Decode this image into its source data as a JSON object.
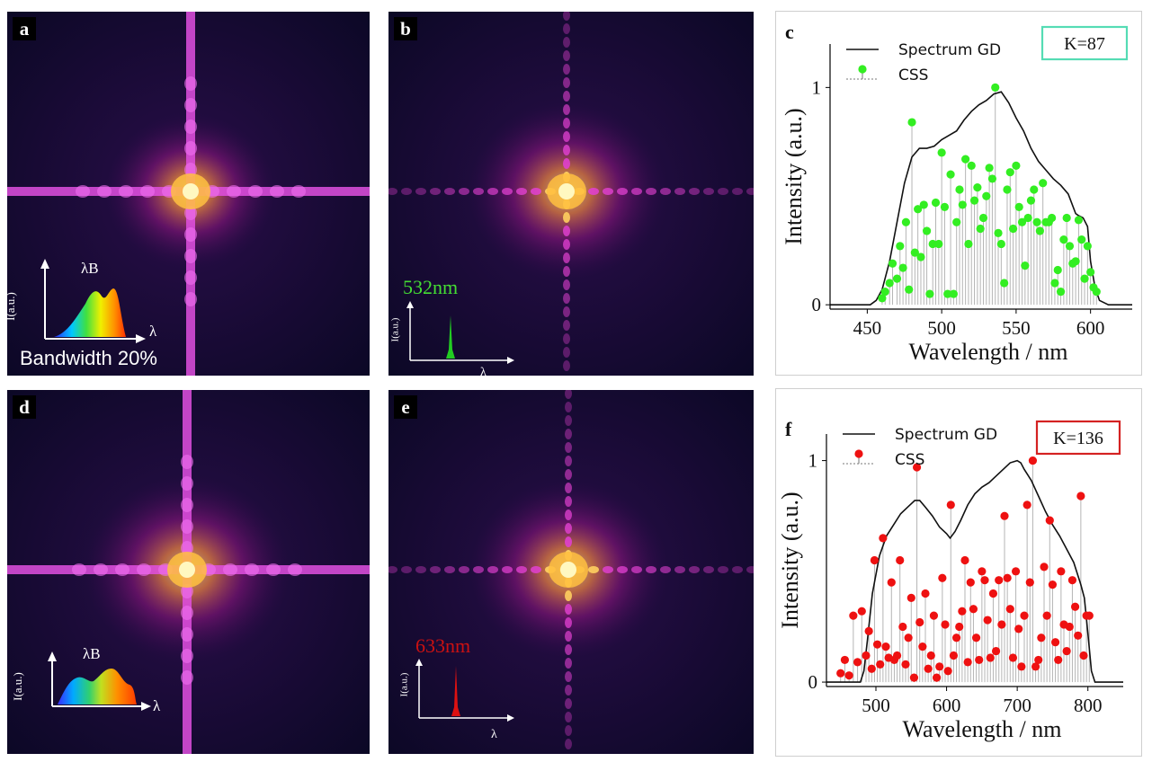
{
  "panels": {
    "a": {
      "label": "a",
      "inset_peak_label": "λB",
      "inset_y_label": "I(a.u.)",
      "inset_x_label": "λ",
      "caption": "Bandwidth 20%"
    },
    "b": {
      "label": "b",
      "wavelength_label": "532nm",
      "inset_y_label": "I(a.u.)",
      "inset_x_label": "λ",
      "line_color": "#22cc22"
    },
    "d": {
      "label": "d",
      "inset_peak_label": "λB",
      "inset_y_label": "I(a.u.)",
      "inset_x_label": "λ"
    },
    "e": {
      "label": "e",
      "wavelength_label": "633nm",
      "inset_y_label": "I(a.u.)",
      "inset_x_label": "λ",
      "line_color": "#dd1111"
    }
  },
  "chart_data": [
    {
      "panel": "c",
      "type": "line",
      "xlabel": "Wavelength / nm",
      "ylabel": "Intensity (a.u.)",
      "xlim": [
        425,
        628
      ],
      "ylim": [
        -0.02,
        1.2
      ],
      "xticks": [
        450,
        500,
        550,
        600
      ],
      "yticks": [
        0,
        1
      ],
      "legend": {
        "placement": "top-left",
        "entries": [
          "Spectrum GD",
          "CSS"
        ]
      },
      "annotation": {
        "text": "K=87",
        "border_color": "#55dcb4"
      },
      "css_color": "#33ee22",
      "series": [
        {
          "name": "Spectrum GD",
          "color": "#111111",
          "x": [
            425,
            452,
            456,
            460,
            465,
            470,
            475,
            480,
            485,
            490,
            495,
            500,
            505,
            510,
            515,
            520,
            525,
            530,
            535,
            540,
            545,
            550,
            555,
            560,
            565,
            570,
            575,
            580,
            585,
            590,
            592,
            595,
            598,
            600,
            603,
            606,
            612,
            628
          ],
          "y": [
            0,
            0,
            0.02,
            0.07,
            0.2,
            0.38,
            0.56,
            0.68,
            0.72,
            0.72,
            0.73,
            0.76,
            0.78,
            0.8,
            0.85,
            0.89,
            0.92,
            0.94,
            0.97,
            0.98,
            0.93,
            0.86,
            0.8,
            0.72,
            0.66,
            0.62,
            0.58,
            0.55,
            0.51,
            0.42,
            0.41,
            0.4,
            0.36,
            0.2,
            0.08,
            0.02,
            0,
            0
          ]
        },
        {
          "name": "CSS",
          "type": "stem",
          "color": "#33ee22",
          "x": [
            460,
            462,
            465,
            467,
            470,
            472,
            474,
            476,
            478,
            480,
            482,
            484,
            486,
            488,
            490,
            492,
            494,
            496,
            498,
            500,
            502,
            504,
            506,
            508,
            510,
            512,
            514,
            516,
            518,
            520,
            522,
            524,
            526,
            528,
            530,
            532,
            534,
            536,
            538,
            540,
            542,
            544,
            546,
            548,
            550,
            552,
            554,
            556,
            558,
            560,
            562,
            564,
            566,
            568,
            570,
            572,
            574,
            576,
            578,
            580,
            582,
            584,
            586,
            588,
            590,
            592,
            594,
            596,
            598,
            600,
            602,
            604
          ],
          "y": [
            0.03,
            0.06,
            0.1,
            0.19,
            0.12,
            0.27,
            0.17,
            0.38,
            0.07,
            0.84,
            0.24,
            0.44,
            0.22,
            0.46,
            0.34,
            0.05,
            0.28,
            0.47,
            0.28,
            0.7,
            0.45,
            0.05,
            0.6,
            0.05,
            0.38,
            0.53,
            0.46,
            0.67,
            0.28,
            0.64,
            0.48,
            0.54,
            0.35,
            0.4,
            0.5,
            0.63,
            0.58,
            1.0,
            0.33,
            0.28,
            0.1,
            0.53,
            0.61,
            0.35,
            0.64,
            0.45,
            0.38,
            0.18,
            0.4,
            0.48,
            0.53,
            0.38,
            0.34,
            0.56,
            0.38,
            0.38,
            0.4,
            0.1,
            0.16,
            0.06,
            0.3,
            0.4,
            0.27,
            0.19,
            0.2,
            0.39,
            0.3,
            0.12,
            0.27,
            0.15,
            0.08,
            0.06
          ]
        }
      ]
    },
    {
      "panel": "f",
      "type": "line",
      "xlabel": "Wavelength / nm",
      "ylabel": "Intensity (a.u.)",
      "xlim": [
        430,
        850
      ],
      "ylim": [
        -0.02,
        1.12
      ],
      "xticks": [
        500,
        600,
        700,
        800
      ],
      "yticks": [
        0,
        1
      ],
      "legend": {
        "placement": "top-left",
        "entries": [
          "Spectrum GD",
          "CSS"
        ]
      },
      "annotation": {
        "text": "K=136",
        "border_color": "#d42222"
      },
      "css_color": "#ee1111",
      "series": [
        {
          "name": "Spectrum GD",
          "color": "#111111",
          "x": [
            430,
            478,
            483,
            488,
            495,
            505,
            515,
            525,
            535,
            545,
            555,
            562,
            570,
            580,
            590,
            600,
            605,
            612,
            620,
            630,
            640,
            650,
            660,
            670,
            680,
            690,
            700,
            705,
            710,
            720,
            730,
            740,
            750,
            760,
            770,
            780,
            790,
            795,
            800,
            805,
            810,
            850
          ],
          "y": [
            0,
            0,
            0.05,
            0.19,
            0.4,
            0.57,
            0.66,
            0.71,
            0.76,
            0.79,
            0.82,
            0.82,
            0.79,
            0.75,
            0.7,
            0.67,
            0.65,
            0.68,
            0.73,
            0.8,
            0.85,
            0.88,
            0.9,
            0.93,
            0.96,
            0.99,
            1.0,
            0.99,
            0.96,
            0.91,
            0.84,
            0.77,
            0.71,
            0.66,
            0.6,
            0.54,
            0.44,
            0.38,
            0.22,
            0.05,
            0,
            0
          ]
        },
        {
          "name": "CSS",
          "type": "stem",
          "color": "#ee1111",
          "x": [
            450,
            456,
            462,
            468,
            474,
            480,
            486,
            490,
            494,
            498,
            502,
            506,
            510,
            514,
            518,
            522,
            526,
            530,
            534,
            538,
            542,
            546,
            550,
            554,
            558,
            562,
            566,
            570,
            574,
            578,
            582,
            586,
            590,
            594,
            598,
            602,
            606,
            610,
            614,
            618,
            622,
            626,
            630,
            634,
            638,
            642,
            646,
            650,
            654,
            658,
            662,
            666,
            670,
            674,
            678,
            682,
            686,
            690,
            694,
            698,
            702,
            706,
            710,
            714,
            718,
            722,
            726,
            730,
            734,
            738,
            742,
            746,
            750,
            754,
            758,
            762,
            766,
            770,
            774,
            778,
            782,
            786,
            790,
            794,
            798,
            802
          ],
          "y": [
            0.04,
            0.1,
            0.03,
            0.3,
            0.09,
            0.32,
            0.12,
            0.23,
            0.06,
            0.55,
            0.17,
            0.08,
            0.65,
            0.16,
            0.11,
            0.45,
            0.1,
            0.12,
            0.55,
            0.25,
            0.08,
            0.2,
            0.38,
            0.02,
            0.97,
            0.27,
            0.16,
            0.4,
            0.06,
            0.12,
            0.3,
            0.02,
            0.07,
            0.47,
            0.26,
            0.05,
            0.8,
            0.12,
            0.2,
            0.25,
            0.32,
            0.55,
            0.09,
            0.45,
            0.33,
            0.2,
            0.1,
            0.5,
            0.46,
            0.28,
            0.11,
            0.4,
            0.14,
            0.46,
            0.26,
            0.75,
            0.47,
            0.33,
            0.11,
            0.5,
            0.24,
            0.07,
            0.3,
            0.8,
            0.45,
            1.0,
            0.07,
            0.1,
            0.2,
            0.52,
            0.3,
            0.73,
            0.44,
            0.18,
            0.1,
            0.5,
            0.26,
            0.14,
            0.25,
            0.46,
            0.34,
            0.21,
            0.84,
            0.12,
            0.3,
            0.3
          ]
        }
      ]
    }
  ]
}
